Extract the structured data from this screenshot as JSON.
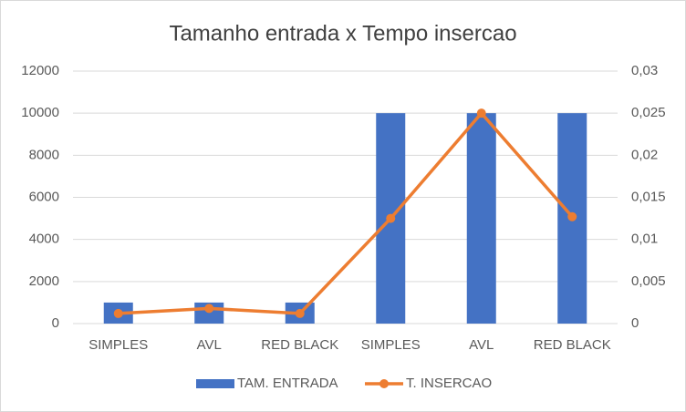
{
  "chart_data": {
    "type": "combo",
    "title": "Tamanho entrada x Tempo insercao",
    "categories": [
      "SIMPLES",
      "AVL",
      "RED BLACK",
      "SIMPLES",
      "AVL",
      "RED BLACK"
    ],
    "series": [
      {
        "name": "TAM. ENTRADA",
        "type": "bar",
        "color": "#4472c4",
        "values": [
          1000,
          1000,
          1000,
          10000,
          10000,
          10000
        ]
      },
      {
        "name": "T. INSERCAO",
        "type": "line",
        "axis": "y2",
        "color": "#ed7d31",
        "values": [
          0.0012,
          0.0018,
          0.0012,
          0.0125,
          0.025,
          0.0127
        ]
      }
    ],
    "ylim": [
      0,
      12000
    ],
    "yticks": [
      0,
      2000,
      4000,
      6000,
      8000,
      10000,
      12000
    ],
    "y2lim": [
      0,
      0.03
    ],
    "y2ticks": [
      0,
      {
        "value": 0.005,
        "label": "0,005"
      },
      {
        "value": 0.01,
        "label": "0,01"
      },
      {
        "value": 0.015,
        "label": "0,015"
      },
      {
        "value": 0.02,
        "label": "0,02"
      },
      {
        "value": 0.025,
        "label": "0,025"
      },
      {
        "value": 0.03,
        "label": "0,03"
      }
    ],
    "grid": true,
    "legend": "bottom"
  }
}
